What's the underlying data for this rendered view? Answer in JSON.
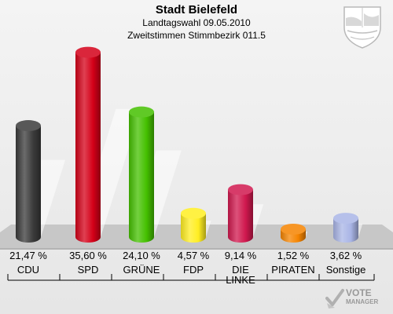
{
  "header": {
    "title": "Stadt Bielefeld",
    "subtitle1": "Landtagswahl 09.05.2010",
    "subtitle2": "Zweitstimmen Stimmbezirk 011.5"
  },
  "logo": {
    "line1": "VOTE",
    "line2": "MANAGER",
    "icon": "vote-check-icon"
  },
  "seal": {
    "icon": "nrw-coat-of-arms-icon"
  },
  "chart_data": {
    "type": "bar",
    "categories": [
      "CDU",
      "SPD",
      "GRÜNE",
      "FDP",
      "DIE LINKE",
      "PIRATEN",
      "Sonstige"
    ],
    "values": [
      21.47,
      35.6,
      24.1,
      4.57,
      9.14,
      1.52,
      3.62
    ],
    "value_labels": [
      "21,47 %",
      "35,60 %",
      "24,10 %",
      "4,57 %",
      "9,14 %",
      "1,52 %",
      "3,62 %"
    ],
    "name_labels": [
      [
        "CDU"
      ],
      [
        "SPD"
      ],
      [
        "GRÜNE"
      ],
      [
        "FDP"
      ],
      [
        "DIE",
        "LINKE"
      ],
      [
        "PIRATEN"
      ],
      [
        "Sonstige"
      ]
    ],
    "colors": [
      "#3a3a3a",
      "#d40018",
      "#44c000",
      "#ffee22",
      "#d0184e",
      "#f58400",
      "#a9b5e6"
    ],
    "ylim": [
      0,
      36
    ],
    "grid": false
  }
}
